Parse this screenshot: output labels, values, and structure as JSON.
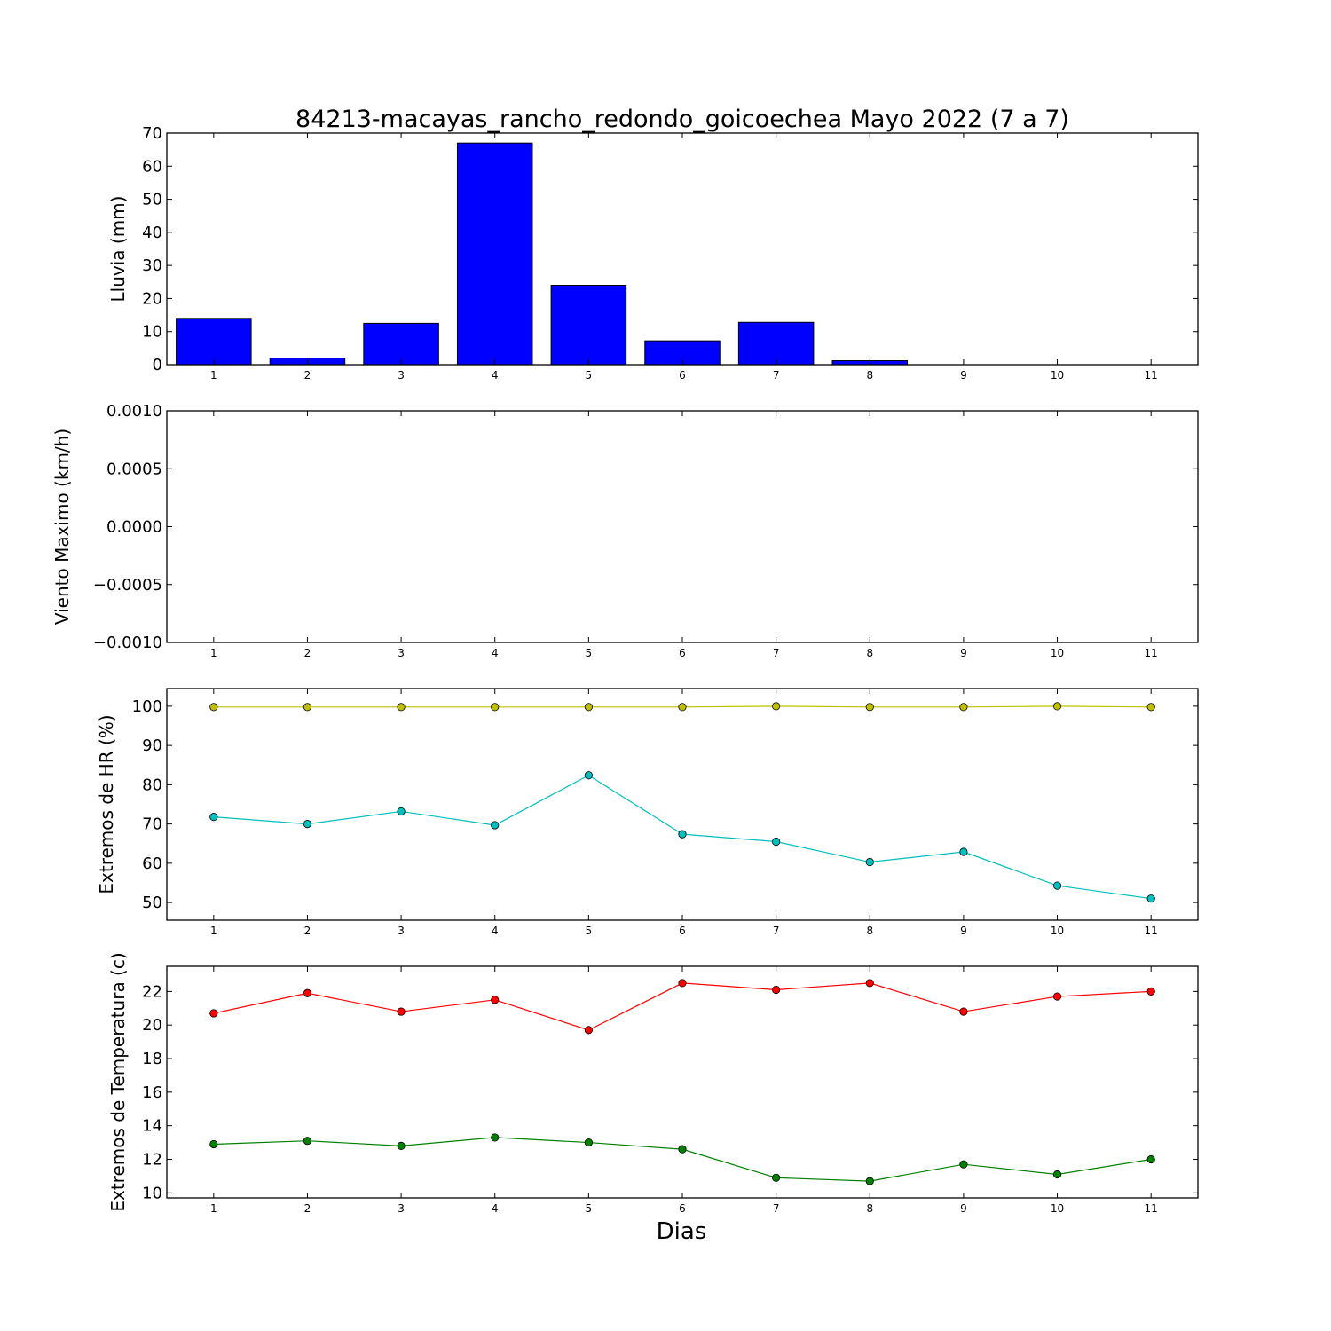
{
  "figure": {
    "title": "84213-macayas_rancho_redondo_goicoechea Mayo 2022  (7 a 7)",
    "xlabel": "Dias"
  },
  "chart_data": [
    {
      "type": "bar",
      "ylabel": "Lluvia (mm)",
      "x": [
        1,
        2,
        3,
        4,
        5,
        6,
        7,
        8,
        9,
        10,
        11
      ],
      "xlim": [
        0.5,
        11.5
      ],
      "ylim": [
        0,
        70
      ],
      "yticks": [
        0,
        10,
        20,
        30,
        40,
        50,
        60,
        70
      ],
      "values": [
        14.0,
        2.0,
        12.5,
        67.0,
        24.0,
        7.2,
        12.8,
        1.2,
        0.0,
        0.0,
        0.0
      ],
      "color": "#0000ff"
    },
    {
      "type": "line",
      "ylabel": "Viento Maximo (km/h)",
      "x": [
        1,
        2,
        3,
        4,
        5,
        6,
        7,
        8,
        9,
        10,
        11
      ],
      "xlim": [
        0.5,
        11.5
      ],
      "ylim": [
        -0.001,
        0.001
      ],
      "yticks": [
        -0.001,
        -0.0005,
        0.0,
        0.0005,
        0.001
      ],
      "ytick_labels": [
        "−0.0010",
        "−0.0005",
        "0.0000",
        "0.0005",
        "0.0010"
      ],
      "series": []
    },
    {
      "type": "line",
      "ylabel": "Extremos de HR (%)",
      "x": [
        1,
        2,
        3,
        4,
        5,
        6,
        7,
        8,
        9,
        10,
        11
      ],
      "xlim": [
        0.5,
        11.5
      ],
      "ylim": [
        45.5,
        104.5
      ],
      "yticks": [
        50,
        60,
        70,
        80,
        90,
        100
      ],
      "series": [
        {
          "color": "#bfbf00",
          "values": [
            99.8,
            99.8,
            99.8,
            99.8,
            99.8,
            99.8,
            100.0,
            99.8,
            99.8,
            100.0,
            99.8
          ]
        },
        {
          "color": "#00bfbf",
          "values": [
            71.8,
            70.0,
            73.2,
            69.7,
            82.4,
            67.4,
            65.5,
            60.3,
            62.9,
            54.3,
            51.0
          ]
        }
      ]
    },
    {
      "type": "line",
      "ylabel": "Extremos de Temperatura (c)",
      "x": [
        1,
        2,
        3,
        4,
        5,
        6,
        7,
        8,
        9,
        10,
        11
      ],
      "xlim": [
        0.5,
        11.5
      ],
      "ylim": [
        9.7,
        23.5
      ],
      "yticks": [
        10,
        12,
        14,
        16,
        18,
        20,
        22
      ],
      "series": [
        {
          "color": "#ff0000",
          "values": [
            20.7,
            21.9,
            20.8,
            21.5,
            19.7,
            22.5,
            22.1,
            22.5,
            20.8,
            21.7,
            22.0
          ]
        },
        {
          "color": "#008000",
          "values": [
            12.9,
            13.1,
            12.8,
            13.3,
            13.0,
            12.6,
            10.9,
            10.7,
            11.7,
            11.1,
            12.0
          ]
        }
      ]
    }
  ]
}
